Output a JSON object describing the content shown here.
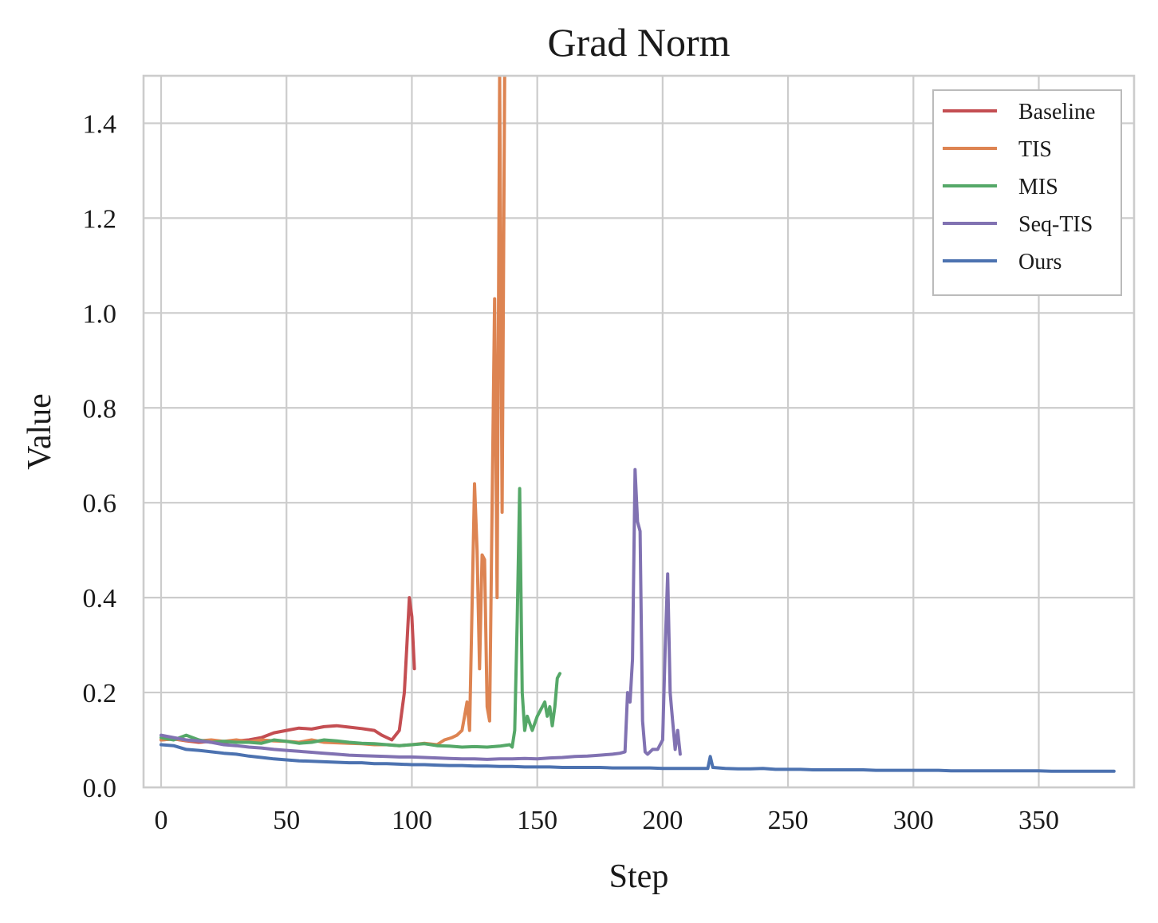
{
  "chart_data": {
    "type": "line",
    "title": "Grad Norm",
    "xlabel": "Step",
    "ylabel": "Value",
    "xlim": [
      -7,
      388
    ],
    "ylim": [
      0.0,
      1.5
    ],
    "xticks": [
      0,
      50,
      100,
      150,
      200,
      250,
      300,
      350
    ],
    "yticks": [
      0.0,
      0.2,
      0.4,
      0.6,
      0.8,
      1.0,
      1.2,
      1.4
    ],
    "xtick_labels": [
      "0",
      "50",
      "100",
      "150",
      "200",
      "250",
      "300",
      "350"
    ],
    "ytick_labels": [
      "0.0",
      "0.2",
      "0.4",
      "0.6",
      "0.8",
      "1.0",
      "1.2",
      "1.4"
    ],
    "grid": true,
    "legend_position": "top-right",
    "series": [
      {
        "name": "Baseline",
        "color": "#c44e52",
        "points": [
          [
            0,
            0.1
          ],
          [
            5,
            0.102
          ],
          [
            10,
            0.098
          ],
          [
            15,
            0.095
          ],
          [
            20,
            0.097
          ],
          [
            25,
            0.095
          ],
          [
            30,
            0.098
          ],
          [
            35,
            0.1
          ],
          [
            40,
            0.105
          ],
          [
            45,
            0.115
          ],
          [
            50,
            0.12
          ],
          [
            55,
            0.125
          ],
          [
            60,
            0.123
          ],
          [
            65,
            0.128
          ],
          [
            70,
            0.13
          ],
          [
            75,
            0.127
          ],
          [
            80,
            0.124
          ],
          [
            85,
            0.12
          ],
          [
            88,
            0.11
          ],
          [
            92,
            0.1
          ],
          [
            95,
            0.12
          ],
          [
            97,
            0.2
          ],
          [
            98,
            0.3
          ],
          [
            99,
            0.4
          ],
          [
            100,
            0.36
          ],
          [
            101,
            0.25
          ]
        ]
      },
      {
        "name": "TIS",
        "color": "#dd8452",
        "points": [
          [
            0,
            0.1
          ],
          [
            5,
            0.102
          ],
          [
            10,
            0.099
          ],
          [
            15,
            0.098
          ],
          [
            20,
            0.1
          ],
          [
            25,
            0.097
          ],
          [
            30,
            0.1
          ],
          [
            35,
            0.096
          ],
          [
            40,
            0.1
          ],
          [
            45,
            0.098
          ],
          [
            50,
            0.097
          ],
          [
            55,
            0.095
          ],
          [
            60,
            0.1
          ],
          [
            65,
            0.095
          ],
          [
            70,
            0.094
          ],
          [
            75,
            0.093
          ],
          [
            80,
            0.092
          ],
          [
            85,
            0.09
          ],
          [
            90,
            0.09
          ],
          [
            95,
            0.088
          ],
          [
            100,
            0.09
          ],
          [
            105,
            0.093
          ],
          [
            110,
            0.09
          ],
          [
            113,
            0.1
          ],
          [
            116,
            0.105
          ],
          [
            118,
            0.11
          ],
          [
            120,
            0.12
          ],
          [
            121,
            0.15
          ],
          [
            122,
            0.18
          ],
          [
            123,
            0.12
          ],
          [
            124,
            0.38
          ],
          [
            125,
            0.64
          ],
          [
            126,
            0.5
          ],
          [
            127,
            0.25
          ],
          [
            128,
            0.49
          ],
          [
            129,
            0.48
          ],
          [
            130,
            0.17
          ],
          [
            131,
            0.14
          ],
          [
            132,
            0.6
          ],
          [
            133,
            1.03
          ],
          [
            134,
            0.4
          ],
          [
            135,
            1.5
          ],
          [
            136,
            0.58
          ],
          [
            137,
            1.5
          ]
        ]
      },
      {
        "name": "MIS",
        "color": "#55a868",
        "points": [
          [
            0,
            0.105
          ],
          [
            5,
            0.1
          ],
          [
            10,
            0.11
          ],
          [
            15,
            0.1
          ],
          [
            20,
            0.095
          ],
          [
            25,
            0.097
          ],
          [
            30,
            0.095
          ],
          [
            35,
            0.095
          ],
          [
            40,
            0.093
          ],
          [
            45,
            0.1
          ],
          [
            50,
            0.097
          ],
          [
            55,
            0.093
          ],
          [
            60,
            0.095
          ],
          [
            65,
            0.1
          ],
          [
            70,
            0.098
          ],
          [
            75,
            0.095
          ],
          [
            80,
            0.093
          ],
          [
            85,
            0.092
          ],
          [
            90,
            0.09
          ],
          [
            95,
            0.088
          ],
          [
            100,
            0.09
          ],
          [
            105,
            0.092
          ],
          [
            110,
            0.088
          ],
          [
            115,
            0.087
          ],
          [
            120,
            0.085
          ],
          [
            125,
            0.086
          ],
          [
            130,
            0.085
          ],
          [
            135,
            0.087
          ],
          [
            139,
            0.09
          ],
          [
            140,
            0.085
          ],
          [
            141,
            0.12
          ],
          [
            142,
            0.35
          ],
          [
            143,
            0.63
          ],
          [
            144,
            0.2
          ],
          [
            145,
            0.12
          ],
          [
            146,
            0.15
          ],
          [
            148,
            0.12
          ],
          [
            150,
            0.15
          ],
          [
            151,
            0.16
          ],
          [
            153,
            0.18
          ],
          [
            154,
            0.15
          ],
          [
            155,
            0.17
          ],
          [
            156,
            0.13
          ],
          [
            157,
            0.17
          ],
          [
            158,
            0.23
          ],
          [
            159,
            0.24
          ]
        ]
      },
      {
        "name": "Seq-TIS",
        "color": "#8172b2",
        "points": [
          [
            0,
            0.11
          ],
          [
            5,
            0.105
          ],
          [
            10,
            0.1
          ],
          [
            15,
            0.098
          ],
          [
            20,
            0.095
          ],
          [
            25,
            0.09
          ],
          [
            30,
            0.088
          ],
          [
            35,
            0.085
          ],
          [
            40,
            0.083
          ],
          [
            45,
            0.08
          ],
          [
            50,
            0.078
          ],
          [
            55,
            0.076
          ],
          [
            60,
            0.074
          ],
          [
            65,
            0.072
          ],
          [
            70,
            0.07
          ],
          [
            75,
            0.068
          ],
          [
            80,
            0.067
          ],
          [
            85,
            0.066
          ],
          [
            90,
            0.065
          ],
          [
            95,
            0.064
          ],
          [
            100,
            0.064
          ],
          [
            105,
            0.063
          ],
          [
            110,
            0.062
          ],
          [
            115,
            0.061
          ],
          [
            120,
            0.06
          ],
          [
            125,
            0.06
          ],
          [
            130,
            0.059
          ],
          [
            135,
            0.06
          ],
          [
            140,
            0.06
          ],
          [
            145,
            0.061
          ],
          [
            150,
            0.06
          ],
          [
            155,
            0.062
          ],
          [
            160,
            0.063
          ],
          [
            165,
            0.065
          ],
          [
            170,
            0.066
          ],
          [
            175,
            0.068
          ],
          [
            180,
            0.07
          ],
          [
            183,
            0.072
          ],
          [
            185,
            0.075
          ],
          [
            186,
            0.2
          ],
          [
            187,
            0.18
          ],
          [
            188,
            0.27
          ],
          [
            189,
            0.67
          ],
          [
            190,
            0.56
          ],
          [
            191,
            0.54
          ],
          [
            192,
            0.14
          ],
          [
            193,
            0.075
          ],
          [
            194,
            0.07
          ],
          [
            195,
            0.075
          ],
          [
            196,
            0.08
          ],
          [
            198,
            0.08
          ],
          [
            199,
            0.09
          ],
          [
            200,
            0.1
          ],
          [
            201,
            0.29
          ],
          [
            202,
            0.45
          ],
          [
            203,
            0.2
          ],
          [
            204,
            0.14
          ],
          [
            205,
            0.08
          ],
          [
            206,
            0.12
          ],
          [
            207,
            0.07
          ]
        ]
      },
      {
        "name": "Ours",
        "color": "#4c72b0",
        "points": [
          [
            0,
            0.09
          ],
          [
            5,
            0.088
          ],
          [
            10,
            0.08
          ],
          [
            15,
            0.078
          ],
          [
            20,
            0.075
          ],
          [
            25,
            0.072
          ],
          [
            30,
            0.07
          ],
          [
            35,
            0.066
          ],
          [
            40,
            0.063
          ],
          [
            45,
            0.06
          ],
          [
            50,
            0.058
          ],
          [
            55,
            0.056
          ],
          [
            60,
            0.055
          ],
          [
            65,
            0.054
          ],
          [
            70,
            0.053
          ],
          [
            75,
            0.052
          ],
          [
            80,
            0.052
          ],
          [
            85,
            0.05
          ],
          [
            90,
            0.05
          ],
          [
            95,
            0.049
          ],
          [
            100,
            0.048
          ],
          [
            105,
            0.048
          ],
          [
            110,
            0.047
          ],
          [
            115,
            0.046
          ],
          [
            120,
            0.046
          ],
          [
            125,
            0.045
          ],
          [
            130,
            0.045
          ],
          [
            135,
            0.044
          ],
          [
            140,
            0.044
          ],
          [
            145,
            0.043
          ],
          [
            150,
            0.043
          ],
          [
            155,
            0.043
          ],
          [
            160,
            0.042
          ],
          [
            165,
            0.042
          ],
          [
            170,
            0.042
          ],
          [
            175,
            0.042
          ],
          [
            180,
            0.041
          ],
          [
            185,
            0.041
          ],
          [
            190,
            0.041
          ],
          [
            195,
            0.041
          ],
          [
            200,
            0.04
          ],
          [
            205,
            0.04
          ],
          [
            210,
            0.04
          ],
          [
            215,
            0.04
          ],
          [
            218,
            0.04
          ],
          [
            219,
            0.065
          ],
          [
            220,
            0.042
          ],
          [
            225,
            0.04
          ],
          [
            230,
            0.039
          ],
          [
            235,
            0.039
          ],
          [
            240,
            0.04
          ],
          [
            245,
            0.038
          ],
          [
            250,
            0.038
          ],
          [
            255,
            0.038
          ],
          [
            260,
            0.037
          ],
          [
            265,
            0.037
          ],
          [
            270,
            0.037
          ],
          [
            275,
            0.037
          ],
          [
            280,
            0.037
          ],
          [
            285,
            0.036
          ],
          [
            290,
            0.036
          ],
          [
            295,
            0.036
          ],
          [
            300,
            0.036
          ],
          [
            305,
            0.036
          ],
          [
            310,
            0.036
          ],
          [
            315,
            0.035
          ],
          [
            320,
            0.035
          ],
          [
            325,
            0.035
          ],
          [
            330,
            0.035
          ],
          [
            335,
            0.035
          ],
          [
            340,
            0.035
          ],
          [
            345,
            0.035
          ],
          [
            350,
            0.035
          ],
          [
            355,
            0.034
          ],
          [
            360,
            0.034
          ],
          [
            365,
            0.034
          ],
          [
            370,
            0.034
          ],
          [
            375,
            0.034
          ],
          [
            380,
            0.034
          ]
        ]
      }
    ]
  }
}
